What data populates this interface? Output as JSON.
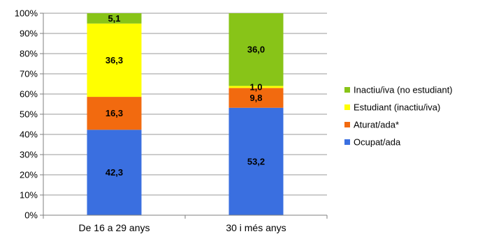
{
  "chart_data": {
    "type": "bar",
    "stacked": true,
    "percent_stacked": true,
    "categories": [
      "De 16 a 29 anys",
      "30 i més anys"
    ],
    "series": [
      {
        "name": "Ocupat/ada",
        "values": [
          42.3,
          53.2
        ],
        "labels": [
          "42,3",
          "53,2"
        ],
        "color": "#3a6fe0"
      },
      {
        "name": "Aturat/ada*",
        "values": [
          16.3,
          9.8
        ],
        "labels": [
          "16,3",
          "9,8"
        ],
        "color": "#f26a0f"
      },
      {
        "name": "Estudiant (inactiu/iva)",
        "values": [
          36.3,
          1.0
        ],
        "labels": [
          "36,3",
          "1,0"
        ],
        "color": "#ffff00"
      },
      {
        "name": "Inactiu/iva (no estudiant)",
        "values": [
          5.1,
          36.0
        ],
        "labels": [
          "5,1",
          "36,0"
        ],
        "color": "#88c418"
      }
    ],
    "ylim": [
      0,
      100
    ],
    "yticks": [
      0,
      10,
      20,
      30,
      40,
      50,
      60,
      70,
      80,
      90,
      100
    ],
    "ytick_labels": [
      "0%",
      "10%",
      "20%",
      "30%",
      "40%",
      "50%",
      "60%",
      "70%",
      "80%",
      "90%",
      "100%"
    ],
    "title": "",
    "xlabel": "",
    "ylabel": "",
    "grid": true,
    "legend_position": "right"
  }
}
